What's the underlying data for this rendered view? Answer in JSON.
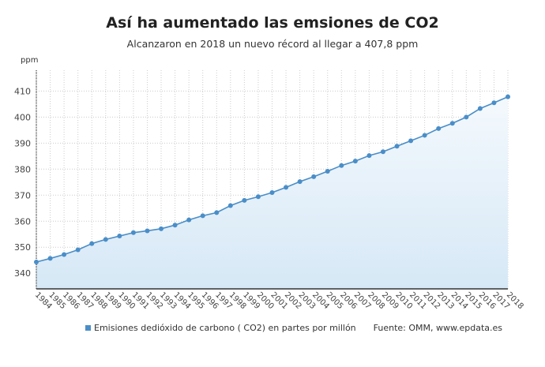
{
  "title": "Así ha aumentado las emsiones de CO2",
  "subtitle": "Alcanzaron en 2018 un nuevo récord al llegar a 407,8 ppm",
  "source": "Fuente: OMM, www.epdata.es",
  "chart_data": {
    "type": "area",
    "title": "Así ha aumentado las emsiones de CO2",
    "subtitle": "Alcanzaron en 2018 un nuevo récord al llegar a 407,8 ppm",
    "ylabel": "ppm",
    "xlabel": "",
    "ylim": [
      334,
      418
    ],
    "yticks": [
      340,
      350,
      360,
      370,
      380,
      390,
      400,
      410
    ],
    "grid": true,
    "legend_position": "bottom",
    "colors": {
      "line": "#4a8ec8",
      "fill_top": "#f4f9fd",
      "fill_bottom": "#d6e8f6"
    },
    "x": [
      "1984",
      "1985",
      "1986",
      "1987",
      "1988",
      "1989",
      "1990",
      "1991",
      "1992",
      "1993",
      "1994",
      "1995",
      "1996",
      "1997",
      "1998",
      "1999",
      "2000",
      "2001",
      "2002",
      "2003",
      "2004",
      "2005",
      "2006",
      "2007",
      "2008",
      "2009",
      "2010",
      "2011",
      "2012",
      "2013",
      "2014",
      "2015",
      "2016",
      "2017",
      "2018"
    ],
    "series": [
      {
        "name": "Emisiones dedióxido de carbono ( CO2) en partes por millón",
        "values": [
          344.3,
          345.7,
          347.2,
          349.0,
          351.4,
          353.0,
          354.3,
          355.6,
          356.3,
          357.1,
          358.5,
          360.5,
          362.1,
          363.3,
          366.0,
          368.0,
          369.4,
          371.0,
          373.0,
          375.2,
          377.1,
          379.2,
          381.4,
          383.1,
          385.2,
          386.7,
          388.8,
          390.9,
          393.0,
          395.6,
          397.6,
          400.0,
          403.3,
          405.5,
          407.8
        ]
      }
    ]
  }
}
